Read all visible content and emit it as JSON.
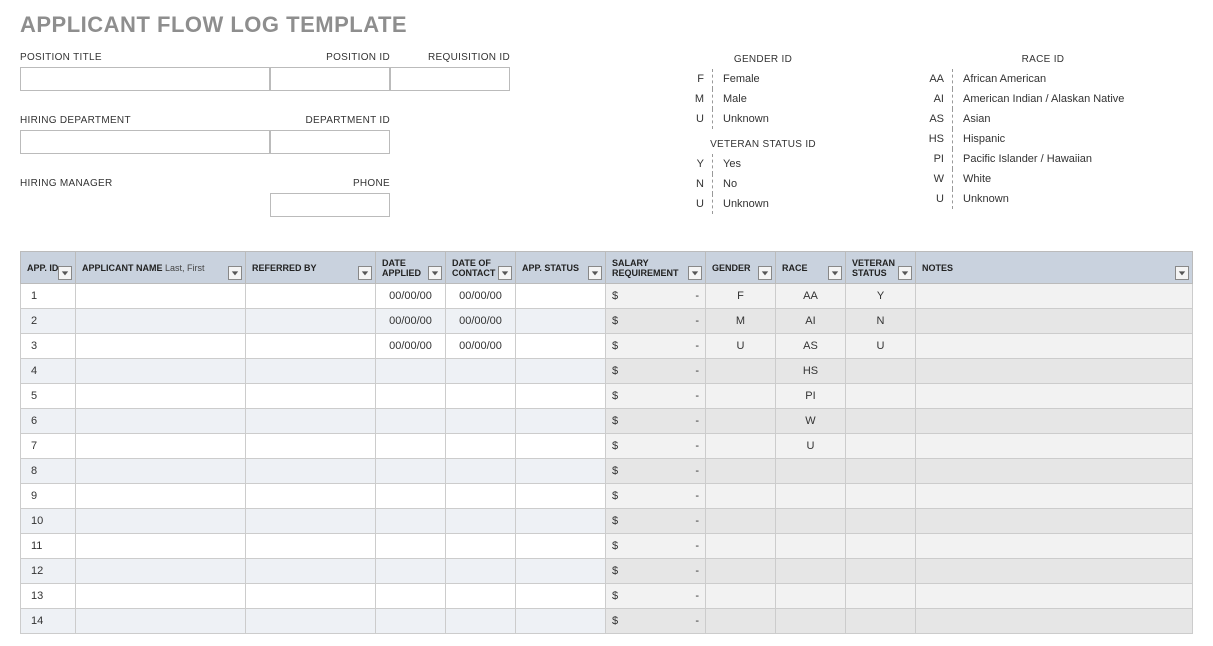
{
  "title": "APPLICANT FLOW LOG TEMPLATE",
  "colors": {
    "title": "#8e8e8e",
    "header_bg": "#c9d2de",
    "row_even_bg": "#eef1f5",
    "row_odd_bg": "#ffffff",
    "shade_bg": "#e6e6e6",
    "border": "#bbbbbb"
  },
  "form": {
    "position_title": {
      "label": "POSITION TITLE",
      "value": ""
    },
    "position_id": {
      "label": "POSITION ID",
      "value": ""
    },
    "requisition_id": {
      "label": "REQUISITION ID",
      "value": ""
    },
    "hiring_department": {
      "label": "HIRING DEPARTMENT",
      "value": ""
    },
    "department_id": {
      "label": "DEPARTMENT ID",
      "value": ""
    },
    "hiring_manager": {
      "label": "HIRING MANAGER",
      "value": ""
    },
    "phone": {
      "label": "PHONE",
      "value": ""
    }
  },
  "keys": {
    "gender": {
      "header": "GENDER ID",
      "items": [
        {
          "code": "F",
          "label": "Female"
        },
        {
          "code": "M",
          "label": "Male"
        },
        {
          "code": "U",
          "label": "Unknown"
        }
      ]
    },
    "veteran": {
      "header": "VETERAN STATUS ID",
      "items": [
        {
          "code": "Y",
          "label": "Yes"
        },
        {
          "code": "N",
          "label": "No"
        },
        {
          "code": "U",
          "label": "Unknown"
        }
      ]
    },
    "race": {
      "header": "RACE ID",
      "items": [
        {
          "code": "AA",
          "label": "African American"
        },
        {
          "code": "AI",
          "label": "American Indian / Alaskan Native"
        },
        {
          "code": "AS",
          "label": "Asian"
        },
        {
          "code": "HS",
          "label": "Hispanic"
        },
        {
          "code": "PI",
          "label": "Pacific Islander / Hawaiian"
        },
        {
          "code": "W",
          "label": "White"
        },
        {
          "code": "U",
          "label": "Unknown"
        }
      ]
    }
  },
  "table": {
    "columns": [
      {
        "key": "app_id",
        "label": "APP. ID",
        "filter": true,
        "cls": "col-appid"
      },
      {
        "key": "name",
        "label": "APPLICANT NAME",
        "sub": "Last, First",
        "filter": true,
        "cls": "col-name"
      },
      {
        "key": "referred_by",
        "label": "REFERRED BY",
        "filter": true,
        "cls": "col-ref"
      },
      {
        "key": "date_applied",
        "label": "DATE APPLIED",
        "filter": true,
        "cls": "col-date"
      },
      {
        "key": "date_contact",
        "label": "DATE OF CONTACT",
        "filter": true,
        "cls": "col-date"
      },
      {
        "key": "status",
        "label": "APP. STATUS",
        "filter": true,
        "cls": "col-status"
      },
      {
        "key": "salary",
        "label": "SALARY REQUIREMENT",
        "filter": true,
        "cls": "col-salary"
      },
      {
        "key": "gender",
        "label": "GENDER",
        "filter": true,
        "cls": "col-gender"
      },
      {
        "key": "race",
        "label": "RACE",
        "filter": true,
        "cls": "col-race"
      },
      {
        "key": "veteran",
        "label": "VETERAN STATUS",
        "filter": true,
        "cls": "col-vet"
      },
      {
        "key": "notes",
        "label": "NOTES",
        "filter": true,
        "cls": "col-notes"
      }
    ],
    "rows": [
      {
        "app_id": "1",
        "date_applied": "00/00/00",
        "date_contact": "00/00/00",
        "salary_sym": "$",
        "salary_val": "-",
        "gender": "F",
        "race": "AA",
        "veteran": "Y"
      },
      {
        "app_id": "2",
        "date_applied": "00/00/00",
        "date_contact": "00/00/00",
        "salary_sym": "$",
        "salary_val": "-",
        "gender": "M",
        "race": "AI",
        "veteran": "N"
      },
      {
        "app_id": "3",
        "date_applied": "00/00/00",
        "date_contact": "00/00/00",
        "salary_sym": "$",
        "salary_val": "-",
        "gender": "U",
        "race": "AS",
        "veteran": "U"
      },
      {
        "app_id": "4",
        "salary_sym": "$",
        "salary_val": "-",
        "race": "HS"
      },
      {
        "app_id": "5",
        "salary_sym": "$",
        "salary_val": "-",
        "race": "PI"
      },
      {
        "app_id": "6",
        "salary_sym": "$",
        "salary_val": "-",
        "race": "W"
      },
      {
        "app_id": "7",
        "salary_sym": "$",
        "salary_val": "-",
        "race": "U"
      },
      {
        "app_id": "8",
        "salary_sym": "$",
        "salary_val": "-"
      },
      {
        "app_id": "9",
        "salary_sym": "$",
        "salary_val": "-"
      },
      {
        "app_id": "10",
        "salary_sym": "$",
        "salary_val": "-"
      },
      {
        "app_id": "11",
        "salary_sym": "$",
        "salary_val": "-"
      },
      {
        "app_id": "12",
        "salary_sym": "$",
        "salary_val": "-"
      },
      {
        "app_id": "13",
        "salary_sym": "$",
        "salary_val": "-"
      },
      {
        "app_id": "14",
        "salary_sym": "$",
        "salary_val": "-"
      }
    ]
  }
}
